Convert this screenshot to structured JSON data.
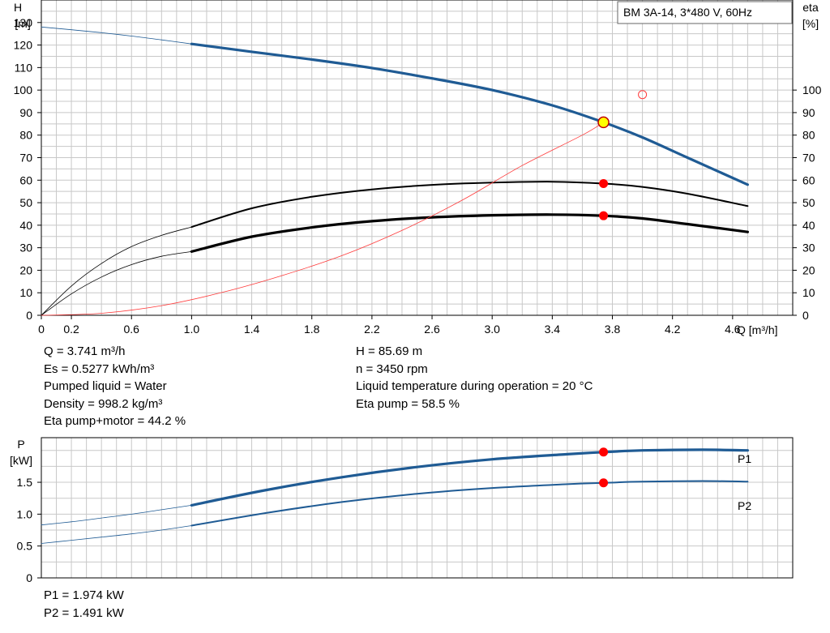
{
  "colors": {
    "head": "#1f5b94",
    "power": "#1f5b94",
    "efficiency": "#000000",
    "npsh": "#ff3b3b",
    "grid": "#c8c8c8",
    "op_point": "#ff0000",
    "op_point_fill_head": "#ffff00"
  },
  "title_box": "BM 3A-14, 3*480 V, 60Hz",
  "chart_data": [
    {
      "type": "line",
      "name": "head-efficiency-chart",
      "x_label": "Q [m³/h]",
      "y_left_label": [
        "H",
        "[m]"
      ],
      "y_right_label": [
        "eta",
        "[%]"
      ],
      "xlim": [
        0,
        5.0
      ],
      "ylim_left": [
        0,
        140
      ],
      "ylim_right": [
        0,
        140
      ],
      "x_ticks": [
        "0",
        "0.2",
        "0.6",
        "1.0",
        "1.4",
        "1.8",
        "2.2",
        "2.6",
        "3.0",
        "3.4",
        "3.8",
        "4.2",
        "4.6"
      ],
      "x_tick_values": [
        0,
        0.2,
        0.6,
        1.0,
        1.4,
        1.8,
        2.2,
        2.6,
        3.0,
        3.4,
        3.8,
        4.2,
        4.6
      ],
      "y_left_ticks": [
        0,
        10,
        20,
        30,
        40,
        50,
        60,
        70,
        80,
        90,
        100,
        110,
        120,
        130
      ],
      "y_right_ticks": [
        0,
        10,
        20,
        30,
        40,
        50,
        60,
        70,
        80,
        90,
        100
      ],
      "grid": true,
      "series": [
        {
          "id": "head_ext",
          "axis": "left",
          "style": "thin",
          "x": [
            0,
            0.2,
            0.4,
            0.6,
            0.8,
            1.0
          ],
          "y": [
            128,
            126.8,
            125.5,
            124,
            122.3,
            120.5
          ]
        },
        {
          "id": "head",
          "axis": "left",
          "style": "thick",
          "x": [
            1.0,
            1.4,
            1.8,
            2.2,
            2.6,
            3.0,
            3.4,
            3.741,
            4.0,
            4.3,
            4.7
          ],
          "y": [
            120.5,
            117,
            113.6,
            109.8,
            105.2,
            100,
            93.2,
            85.69,
            79,
            70,
            58
          ]
        },
        {
          "id": "eta_pump_ext",
          "axis": "right",
          "style": "thin",
          "x": [
            0,
            0.2,
            0.4,
            0.6,
            0.8,
            1.0
          ],
          "y": [
            0,
            13,
            23,
            30.5,
            35.5,
            39.2
          ]
        },
        {
          "id": "eta_pump",
          "axis": "right",
          "style": "medium",
          "x": [
            1.0,
            1.4,
            1.8,
            2.2,
            2.6,
            3.0,
            3.4,
            3.741,
            4.0,
            4.3,
            4.7
          ],
          "y": [
            39.2,
            47.5,
            52.6,
            55.9,
            57.9,
            58.9,
            59.3,
            58.5,
            57,
            54,
            48.5
          ]
        },
        {
          "id": "eta_total_ext",
          "axis": "right",
          "style": "thin",
          "x": [
            0,
            0.2,
            0.4,
            0.6,
            0.8,
            1.0
          ],
          "y": [
            0,
            9.5,
            17,
            22.5,
            26.2,
            28.3
          ]
        },
        {
          "id": "eta_total",
          "axis": "right",
          "style": "thick",
          "x": [
            1.0,
            1.4,
            1.8,
            2.2,
            2.6,
            3.0,
            3.4,
            3.741,
            4.0,
            4.3,
            4.7
          ],
          "y": [
            28.3,
            34.9,
            39,
            41.8,
            43.5,
            44.4,
            44.7,
            44.2,
            43,
            40.5,
            37
          ]
        },
        {
          "id": "system",
          "axis": "left",
          "style": "thin-red",
          "x": [
            0,
            0.4,
            0.8,
            1.2,
            1.6,
            2.0,
            2.4,
            2.8,
            3.2,
            3.6,
            3.741
          ],
          "y": [
            0,
            0.9,
            4.3,
            10.1,
            17.6,
            26.5,
            37.7,
            51.1,
            66.5,
            80,
            85.69
          ]
        }
      ],
      "operating_point": {
        "q": 3.741,
        "h": 85.69,
        "eta_pump": 58.5,
        "eta_total": 44.2
      },
      "reference_point": {
        "q": 4.0,
        "eta": 98
      }
    },
    {
      "type": "line",
      "name": "power-chart",
      "y_label": [
        "P",
        "[kW]"
      ],
      "xlim": [
        0,
        5.0
      ],
      "ylim": [
        0,
        2.2
      ],
      "y_ticks": [
        "0",
        "0.5",
        "1.0",
        "1.5"
      ],
      "y_tick_values": [
        0,
        0.5,
        1.0,
        1.5
      ],
      "grid": true,
      "series": [
        {
          "id": "p1_ext",
          "name": "P1",
          "style": "thin",
          "x": [
            0,
            0.2,
            0.4,
            0.6,
            0.8,
            1.0
          ],
          "y": [
            0.83,
            0.88,
            0.94,
            1.0,
            1.07,
            1.14
          ]
        },
        {
          "id": "p1",
          "name": "P1",
          "style": "thick",
          "x": [
            1.0,
            1.5,
            2.0,
            2.5,
            3.0,
            3.5,
            3.741,
            4.0,
            4.4,
            4.7
          ],
          "y": [
            1.14,
            1.38,
            1.58,
            1.74,
            1.86,
            1.94,
            1.974,
            2.0,
            2.01,
            2.0
          ]
        },
        {
          "id": "p2_ext",
          "name": "P2",
          "style": "thin",
          "x": [
            0,
            0.2,
            0.4,
            0.6,
            0.8,
            1.0
          ],
          "y": [
            0.54,
            0.59,
            0.64,
            0.69,
            0.75,
            0.82
          ]
        },
        {
          "id": "p2",
          "name": "P2",
          "style": "medium",
          "x": [
            1.0,
            1.5,
            2.0,
            2.5,
            3.0,
            3.5,
            3.741,
            4.0,
            4.4,
            4.7
          ],
          "y": [
            0.82,
            1.02,
            1.19,
            1.32,
            1.41,
            1.47,
            1.491,
            1.51,
            1.52,
            1.51
          ]
        }
      ],
      "operating_points": [
        {
          "q": 3.741,
          "p": 1.974
        },
        {
          "q": 3.741,
          "p": 1.491
        }
      ]
    }
  ],
  "info_left": {
    "q": "Q = 3.741 m³/h",
    "es": "Es = 0.5277 kWh/m³",
    "liquid": "Pumped liquid = Water",
    "density": "Density = 998.2 kg/m³",
    "eta_total": "Eta pump+motor = 44.2 %"
  },
  "info_right": {
    "h": "H = 85.69 m",
    "n": "n = 3450 rpm",
    "temp": "Liquid temperature during operation = 20 °C",
    "eta_pump": "Eta pump = 58.5 %"
  },
  "info_power": {
    "p1": "P1 = 1.974 kW",
    "p2": "P2 = 1.491 kW"
  }
}
